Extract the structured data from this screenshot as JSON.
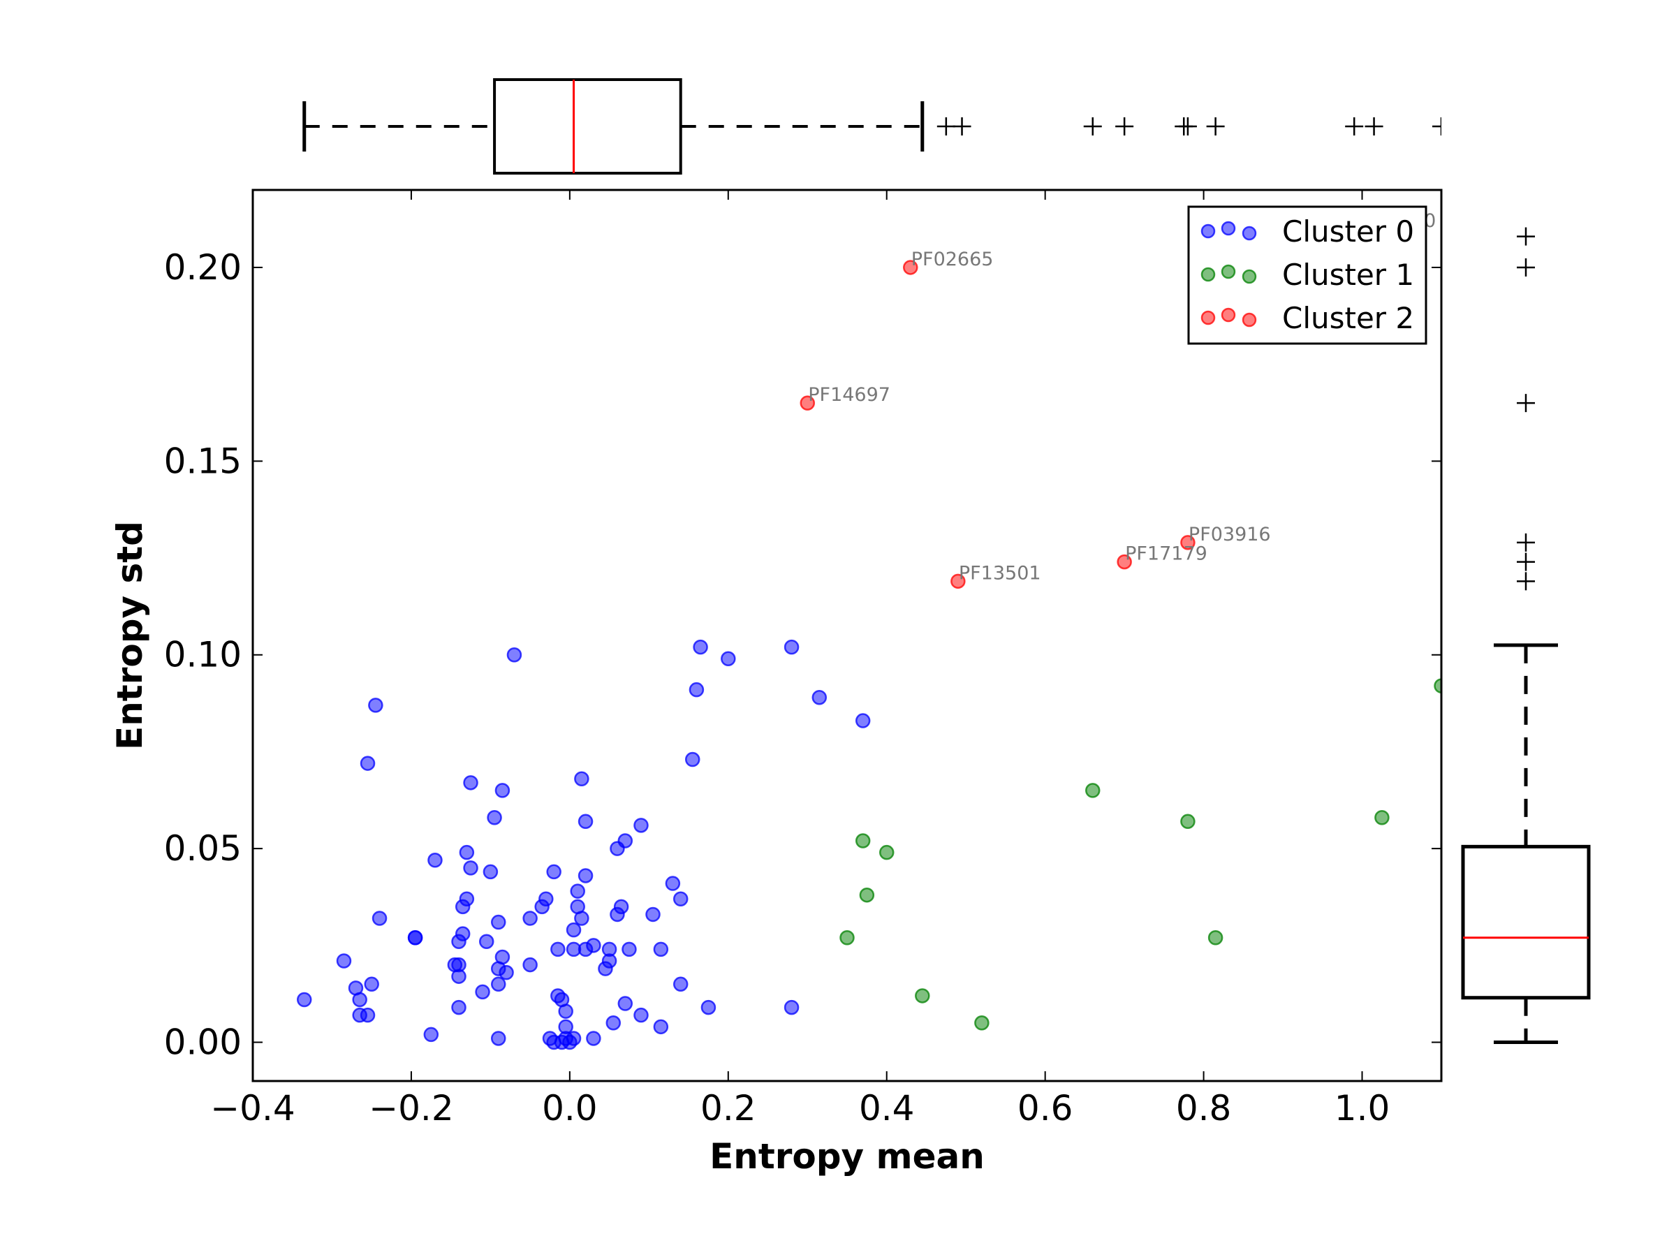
{
  "chart_data": {
    "type": "scatter",
    "xlabel": "Entropy mean",
    "ylabel": "Entropy std",
    "xlim": [
      -0.4,
      1.1
    ],
    "ylim": [
      -0.01,
      0.22
    ],
    "xticks": [
      -0.4,
      -0.2,
      0.0,
      0.2,
      0.4,
      0.6,
      0.8,
      1.0
    ],
    "xtick_labels": [
      "−0.4",
      "−0.2",
      "0.0",
      "0.2",
      "0.4",
      "0.6",
      "0.8",
      "1.0"
    ],
    "yticks": [
      0.0,
      0.05,
      0.1,
      0.15,
      0.2
    ],
    "ytick_labels": [
      "0.00",
      "0.05",
      "0.10",
      "0.15",
      "0.20"
    ],
    "grid": false,
    "legend_position": "top-right",
    "series": [
      {
        "name": "Cluster 0",
        "color": "#0000ff",
        "points": [
          [
            -0.335,
            0.011
          ],
          [
            -0.285,
            0.021
          ],
          [
            -0.27,
            0.014
          ],
          [
            -0.265,
            0.011
          ],
          [
            -0.265,
            0.007
          ],
          [
            -0.255,
            0.007
          ],
          [
            -0.25,
            0.015
          ],
          [
            -0.255,
            0.072
          ],
          [
            -0.245,
            0.087
          ],
          [
            -0.24,
            0.032
          ],
          [
            -0.195,
            0.027
          ],
          [
            -0.195,
            0.027
          ],
          [
            -0.175,
            0.002
          ],
          [
            -0.17,
            0.047
          ],
          [
            -0.145,
            0.02
          ],
          [
            -0.14,
            0.017
          ],
          [
            -0.14,
            0.02
          ],
          [
            -0.14,
            0.026
          ],
          [
            -0.14,
            0.009
          ],
          [
            -0.135,
            0.035
          ],
          [
            -0.135,
            0.028
          ],
          [
            -0.13,
            0.037
          ],
          [
            -0.13,
            0.049
          ],
          [
            -0.125,
            0.045
          ],
          [
            -0.125,
            0.067
          ],
          [
            -0.11,
            0.013
          ],
          [
            -0.105,
            0.026
          ],
          [
            -0.1,
            0.044
          ],
          [
            -0.095,
            0.058
          ],
          [
            -0.09,
            0.031
          ],
          [
            -0.09,
            0.019
          ],
          [
            -0.09,
            0.015
          ],
          [
            -0.09,
            0.001
          ],
          [
            -0.085,
            0.065
          ],
          [
            -0.085,
            0.022
          ],
          [
            -0.08,
            0.018
          ],
          [
            -0.07,
            0.1
          ],
          [
            -0.05,
            0.02
          ],
          [
            -0.05,
            0.032
          ],
          [
            -0.035,
            0.035
          ],
          [
            -0.03,
            0.037
          ],
          [
            -0.025,
            0.001
          ],
          [
            -0.02,
            0.044
          ],
          [
            -0.02,
            0.0
          ],
          [
            -0.015,
            0.024
          ],
          [
            -0.015,
            0.012
          ],
          [
            -0.01,
            0.011
          ],
          [
            -0.01,
            0.0
          ],
          [
            -0.005,
            0.008
          ],
          [
            -0.005,
            0.004
          ],
          [
            -0.005,
            0.001
          ],
          [
            0.0,
            0.0
          ],
          [
            0.005,
            0.001
          ],
          [
            0.005,
            0.029
          ],
          [
            0.005,
            0.024
          ],
          [
            0.01,
            0.035
          ],
          [
            0.01,
            0.039
          ],
          [
            0.015,
            0.068
          ],
          [
            0.015,
            0.032
          ],
          [
            0.02,
            0.043
          ],
          [
            0.02,
            0.024
          ],
          [
            0.02,
            0.057
          ],
          [
            0.03,
            0.001
          ],
          [
            0.03,
            0.025
          ],
          [
            0.045,
            0.019
          ],
          [
            0.05,
            0.021
          ],
          [
            0.05,
            0.024
          ],
          [
            0.055,
            0.005
          ],
          [
            0.06,
            0.05
          ],
          [
            0.06,
            0.033
          ],
          [
            0.065,
            0.035
          ],
          [
            0.07,
            0.01
          ],
          [
            0.07,
            0.052
          ],
          [
            0.075,
            0.024
          ],
          [
            0.09,
            0.056
          ],
          [
            0.09,
            0.007
          ],
          [
            0.105,
            0.033
          ],
          [
            0.115,
            0.024
          ],
          [
            0.115,
            0.004
          ],
          [
            0.13,
            0.041
          ],
          [
            0.14,
            0.037
          ],
          [
            0.14,
            0.015
          ],
          [
            0.155,
            0.073
          ],
          [
            0.16,
            0.091
          ],
          [
            0.165,
            0.102
          ],
          [
            0.175,
            0.009
          ],
          [
            0.2,
            0.099
          ],
          [
            0.28,
            0.102
          ],
          [
            0.28,
            0.009
          ],
          [
            0.315,
            0.089
          ],
          [
            0.37,
            0.083
          ]
        ]
      },
      {
        "name": "Cluster 1",
        "color": "#008000",
        "points": [
          [
            0.35,
            0.027
          ],
          [
            0.37,
            0.052
          ],
          [
            0.375,
            0.038
          ],
          [
            0.4,
            0.049
          ],
          [
            0.445,
            0.012
          ],
          [
            0.52,
            0.005
          ],
          [
            0.66,
            0.065
          ],
          [
            0.78,
            0.057
          ],
          [
            0.815,
            0.027
          ],
          [
            1.025,
            0.058
          ],
          [
            1.1,
            0.092
          ]
        ]
      },
      {
        "name": "Cluster 2",
        "color": "#ff0000",
        "points": [
          [
            0.43,
            0.2
          ],
          [
            0.3,
            0.165
          ],
          [
            0.49,
            0.119
          ],
          [
            0.7,
            0.124
          ],
          [
            0.78,
            0.129
          ]
        ]
      }
    ],
    "annotations": [
      {
        "text": "PF02665",
        "x": 0.43,
        "y": 0.2
      },
      {
        "text": "PF14697",
        "x": 0.3,
        "y": 0.165
      },
      {
        "text": "PF13501",
        "x": 0.49,
        "y": 0.119
      },
      {
        "text": "PF17179",
        "x": 0.7,
        "y": 0.124
      },
      {
        "text": "PF03916",
        "x": 0.78,
        "y": 0.129
      },
      {
        "text": "PF0",
        "x": 1.05,
        "y": 0.209,
        "clipped": true
      }
    ],
    "top_boxplot": {
      "variable": "Entropy mean",
      "whisker_low": -0.335,
      "q1": -0.095,
      "median": 0.005,
      "q3": 0.14,
      "whisker_high": 0.445,
      "outliers": [
        0.475,
        0.495,
        0.66,
        0.7,
        0.775,
        0.78,
        0.815,
        0.99,
        1.015,
        1.1
      ]
    },
    "right_boxplot": {
      "variable": "Entropy std",
      "whisker_low": 0.0,
      "q1": 0.0115,
      "median": 0.027,
      "q3": 0.0505,
      "whisker_high": 0.1025,
      "outliers": [
        0.119,
        0.124,
        0.129,
        0.165,
        0.2,
        0.208
      ]
    }
  }
}
